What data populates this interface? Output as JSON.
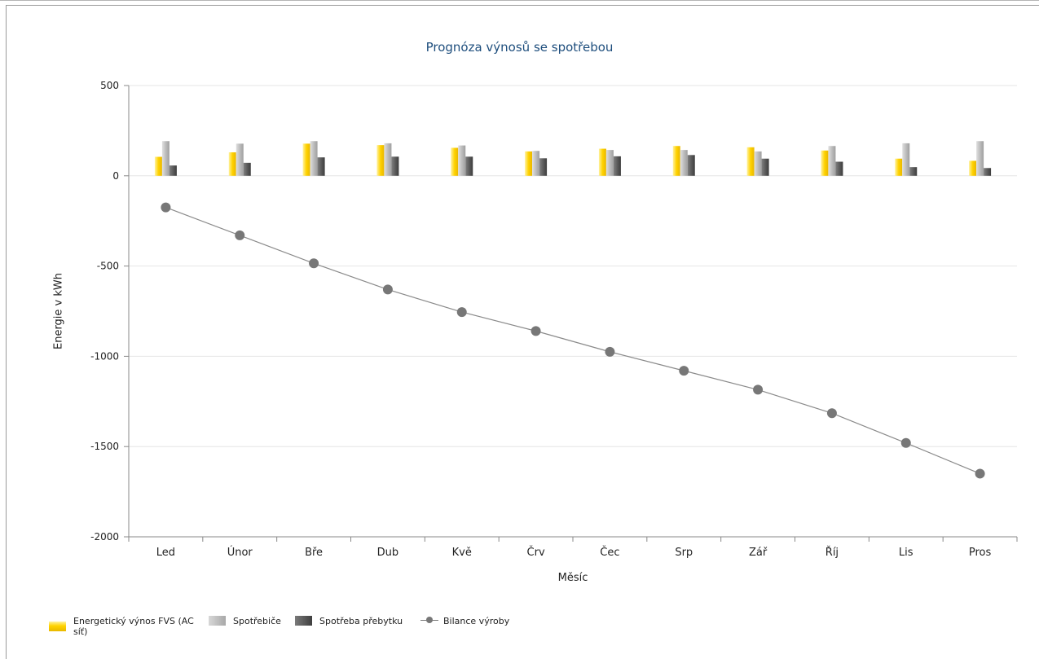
{
  "chart_data": {
    "type": "bar",
    "title": "Prognóza výnosů se spotřebou",
    "xlabel": "Měsíc",
    "ylabel": "Energie v kWh",
    "ylim": [
      -2000,
      500
    ],
    "yticks": [
      "500",
      "0",
      "-500",
      "-1000",
      "-1500",
      "-2000"
    ],
    "ytick_values": [
      500,
      0,
      -500,
      -1000,
      -1500,
      -2000
    ],
    "categories": [
      "Led",
      "Únor",
      "Bře",
      "Dub",
      "Kvě",
      "Črv",
      "Čec",
      "Srp",
      "Zář",
      "Říj",
      "Lis",
      "Pros"
    ],
    "grid": "horizontal",
    "legend_position": "bottom-left",
    "series": [
      {
        "name": "Energetický výnos FVS (AC síť)",
        "type": "bar",
        "color": "#ffd200",
        "values": [
          105,
          130,
          178,
          170,
          155,
          135,
          150,
          165,
          158,
          140,
          95,
          83
        ]
      },
      {
        "name": "Spotřebiče",
        "type": "bar",
        "color": "#b9b9b9",
        "values": [
          192,
          178,
          192,
          180,
          168,
          138,
          143,
          143,
          135,
          165,
          180,
          192
        ]
      },
      {
        "name": "Spotřeba přebytku",
        "type": "bar",
        "color": "#5c5c5c",
        "values": [
          57,
          72,
          102,
          106,
          106,
          97,
          108,
          115,
          95,
          78,
          48,
          43
        ]
      },
      {
        "name": "Bilance výroby",
        "type": "line",
        "color": "#777777",
        "values": [
          -175,
          -330,
          -485,
          -630,
          -755,
          -860,
          -975,
          -1080,
          -1185,
          -1315,
          -1480,
          -1650
        ]
      }
    ]
  },
  "legend": {
    "item1_line1": "Energetický výnos FVS (AC",
    "item1_line2": "síť)",
    "item2": "Spotřebiče",
    "item3": "Spotřeba přebytku",
    "item4": "Bilance výroby"
  }
}
